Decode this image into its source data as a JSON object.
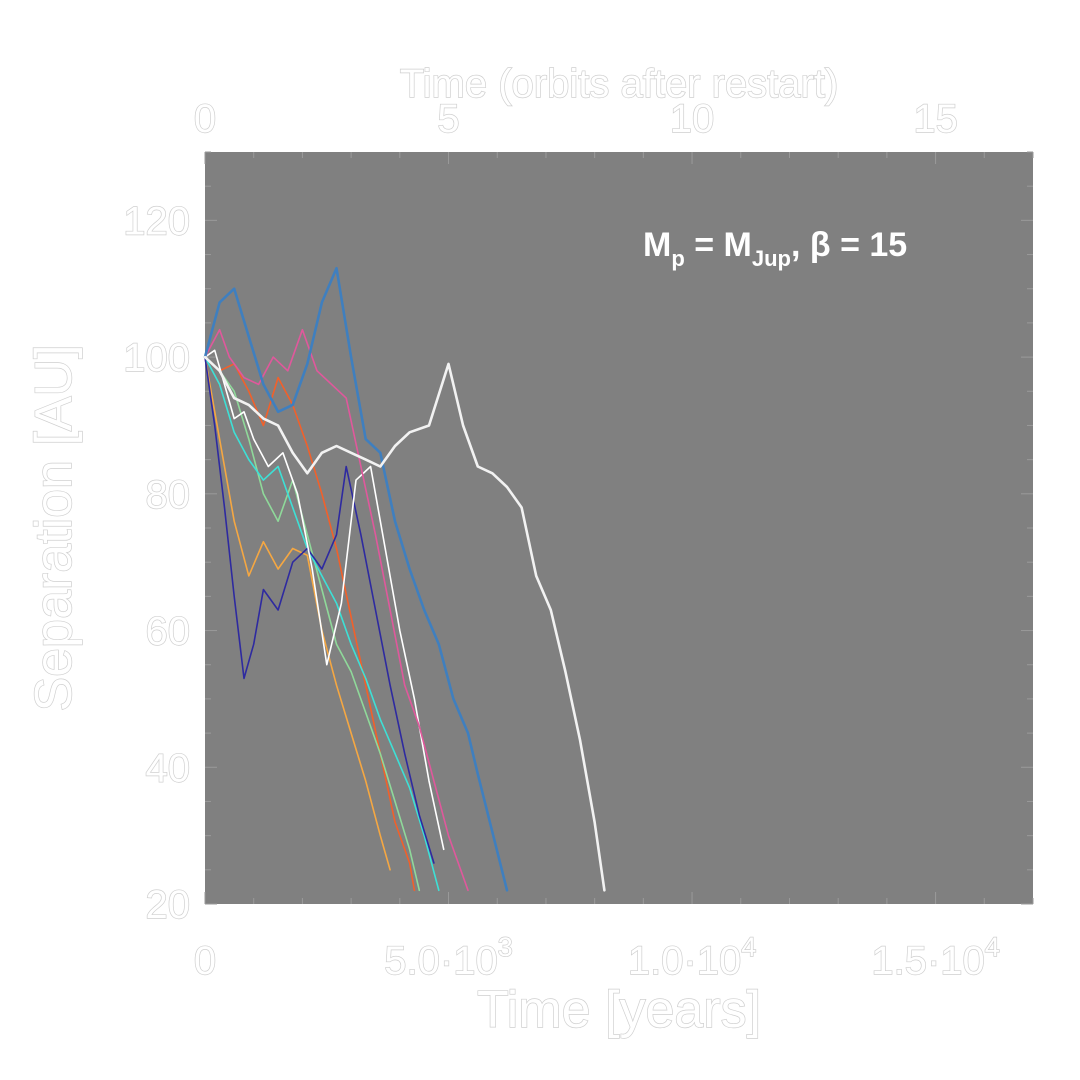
{
  "chart_data": {
    "type": "line",
    "title": "",
    "xlabel": "Time [years]",
    "ylabel": "Separation [AU]",
    "top_xlabel": "Time (orbits after restart)",
    "xlim": [
      0,
      17000
    ],
    "ylim": [
      20,
      130
    ],
    "xticks": [
      {
        "value": 0,
        "label": "0"
      },
      {
        "value": 5000,
        "label": "5.0·10",
        "exp": "3"
      },
      {
        "value": 10000,
        "label": "1.0·10",
        "exp": "4"
      },
      {
        "value": 15000,
        "label": "1.5·10",
        "exp": "4"
      }
    ],
    "top_xticks": [
      {
        "value": 0,
        "label": "0"
      },
      {
        "value": 5,
        "label": "5"
      },
      {
        "value": 10,
        "label": "10"
      },
      {
        "value": 15,
        "label": "15"
      }
    ],
    "years_per_orbit": 1000,
    "yticks": [
      20,
      40,
      60,
      80,
      100,
      120
    ],
    "plot_background": "#808080",
    "annotation": {
      "parts": [
        {
          "t": "M",
          "s": "normal"
        },
        {
          "t": "p",
          "s": "sub"
        },
        {
          "t": " = M",
          "s": "normal"
        },
        {
          "t": "Jup",
          "s": "sub"
        },
        {
          "t": ", β = 15",
          "s": "normal"
        }
      ],
      "position": "top-right"
    },
    "series": [
      {
        "color": "#f5a742",
        "x": [
          0,
          300,
          600,
          900,
          1200,
          1500,
          1800,
          2100,
          2400,
          2700,
          3000,
          3300,
          3600,
          3800
        ],
        "y": [
          100,
          88,
          76,
          68,
          73,
          69,
          72,
          71,
          60,
          52,
          45,
          38,
          30,
          25
        ]
      },
      {
        "color": "#f2602a",
        "x": [
          0,
          300,
          600,
          900,
          1200,
          1500,
          1800,
          2100,
          2400,
          2700,
          3000,
          3300,
          3600,
          3900,
          4200,
          4300
        ],
        "y": [
          100,
          98,
          99,
          95,
          90,
          97,
          93,
          87,
          80,
          72,
          62,
          52,
          42,
          32,
          26,
          22
        ]
      },
      {
        "color": "#8fd99a",
        "x": [
          0,
          300,
          600,
          900,
          1200,
          1500,
          1800,
          2100,
          2400,
          2700,
          3000,
          3300,
          3600,
          3900,
          4200,
          4400
        ],
        "y": [
          100,
          98,
          95,
          88,
          80,
          76,
          82,
          74,
          66,
          58,
          54,
          48,
          42,
          35,
          28,
          22
        ]
      },
      {
        "color": "#3de0d6",
        "x": [
          0,
          300,
          600,
          900,
          1200,
          1500,
          1800,
          2100,
          2400,
          2700,
          3000,
          3300,
          3600,
          3900,
          4200,
          4500,
          4800
        ],
        "y": [
          100,
          96,
          89,
          85,
          82,
          84,
          78,
          72,
          68,
          64,
          58,
          53,
          47,
          42,
          37,
          30,
          22
        ]
      },
      {
        "color": "#2e2aa0",
        "x": [
          0,
          200,
          400,
          600,
          800,
          1000,
          1200,
          1500,
          1800,
          2100,
          2400,
          2700,
          2900,
          3200,
          3500,
          3800,
          4100,
          4400,
          4700
        ],
        "y": [
          100,
          90,
          78,
          65,
          53,
          58,
          66,
          63,
          70,
          72,
          69,
          74,
          84,
          74,
          63,
          52,
          42,
          33,
          26
        ]
      },
      {
        "color": "#ffffff",
        "x": [
          0,
          200,
          400,
          600,
          800,
          1000,
          1300,
          1600,
          1900,
          2200,
          2500,
          2800,
          3100,
          3400,
          3700,
          4000,
          4300,
          4600,
          4900
        ],
        "y": [
          100,
          101,
          96,
          91,
          92,
          88,
          84,
          86,
          80,
          69,
          55,
          64,
          82,
          84,
          72,
          60,
          50,
          38,
          28
        ]
      },
      {
        "color": "#e0589c",
        "x": [
          0,
          300,
          500,
          800,
          1100,
          1400,
          1700,
          2000,
          2300,
          2600,
          2900,
          3200,
          3500,
          3800,
          4100,
          4400,
          4700,
          5000,
          5400
        ],
        "y": [
          100,
          104,
          100,
          97,
          96,
          100,
          98,
          104,
          98,
          96,
          94,
          84,
          74,
          63,
          52,
          46,
          38,
          30,
          22
        ]
      },
      {
        "color": "#3f7fbf",
        "x": [
          0,
          300,
          600,
          900,
          1200,
          1500,
          1800,
          2100,
          2400,
          2700,
          3000,
          3300,
          3600,
          3900,
          4200,
          4500,
          4800,
          5100,
          5400,
          5600,
          6200
        ],
        "y": [
          100,
          108,
          110,
          103,
          96,
          92,
          93,
          99,
          108,
          113,
          100,
          88,
          86,
          76,
          69,
          63,
          58,
          50,
          45,
          39,
          22
        ]
      },
      {
        "color": "#f2f2f2",
        "x": [
          0,
          300,
          600,
          900,
          1200,
          1500,
          1800,
          2100,
          2400,
          2700,
          3000,
          3300,
          3600,
          3900,
          4200,
          4600,
          5000,
          5300,
          5600,
          5900,
          6200,
          6500,
          6800,
          7100,
          7400,
          7700,
          8000,
          8200
        ],
        "y": [
          100,
          98,
          94,
          93,
          91,
          90,
          86,
          83,
          86,
          87,
          86,
          85,
          84,
          87,
          89,
          90,
          99,
          90,
          84,
          83,
          81,
          78,
          68,
          63,
          54,
          44,
          32,
          22
        ]
      }
    ]
  }
}
